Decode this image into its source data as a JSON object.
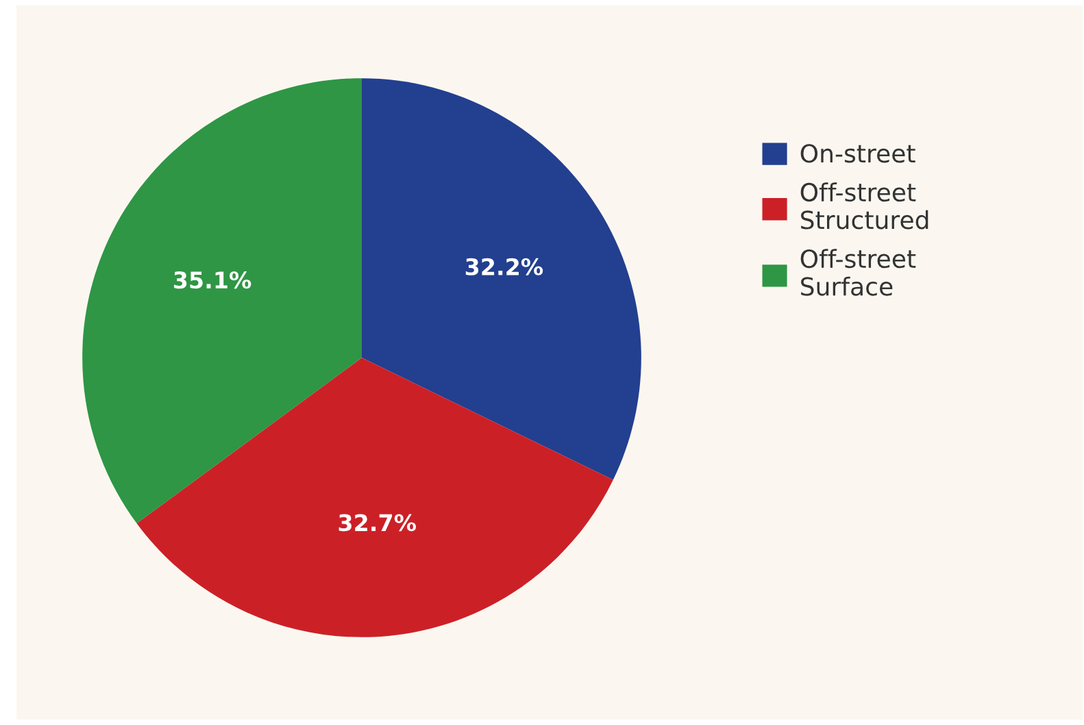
{
  "chart_data": {
    "type": "pie",
    "categories": [
      "On-street",
      "Off-street\nStructured",
      "Off-street\nSurface"
    ],
    "values": [
      32.2,
      32.7,
      35.1
    ],
    "colors": [
      "#233f8f",
      "#cc2027",
      "#2e9645"
    ],
    "value_labels": [
      "32.2%",
      "32.7%",
      "35.1%"
    ],
    "legend": "right"
  }
}
